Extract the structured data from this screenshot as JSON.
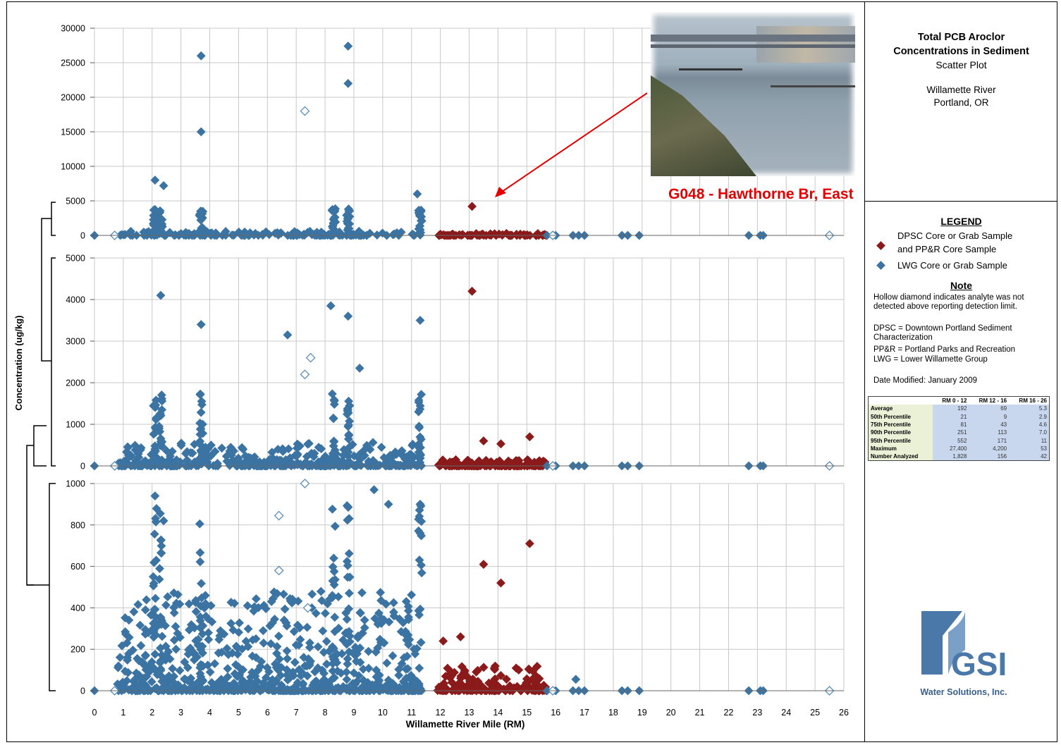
{
  "chart_data": [
    {
      "type": "scatter",
      "panel": "top",
      "ylim": [
        0,
        30000
      ],
      "yticks": [
        "30000",
        "25000",
        "20000",
        "15000",
        "10000",
        "5000",
        "0"
      ],
      "highlight_points": [
        {
          "x": 3.7,
          "y": 26000,
          "series": "LWG"
        },
        {
          "x": 3.7,
          "y": 15000,
          "series": "LWG"
        },
        {
          "x": 8.8,
          "y": 27400,
          "series": "LWG"
        },
        {
          "x": 8.8,
          "y": 22000,
          "series": "LWG"
        },
        {
          "x": 7.3,
          "y": 18000,
          "series": "LWG",
          "nondetect": true
        },
        {
          "x": 2.1,
          "y": 8000,
          "series": "LWG"
        },
        {
          "x": 2.4,
          "y": 7200,
          "series": "LWG"
        },
        {
          "x": 11.2,
          "y": 6000,
          "series": "LWG"
        },
        {
          "x": 13.1,
          "y": 4200,
          "series": "DPSC"
        }
      ]
    },
    {
      "type": "scatter",
      "panel": "middle",
      "ylim": [
        0,
        5000
      ],
      "yticks": [
        "5000",
        "4000",
        "3000",
        "2000",
        "1000",
        "0"
      ],
      "highlight_points": [
        {
          "x": 13.1,
          "y": 4200,
          "series": "DPSC"
        },
        {
          "x": 2.3,
          "y": 4100,
          "series": "LWG"
        },
        {
          "x": 8.2,
          "y": 3850,
          "series": "LWG"
        },
        {
          "x": 8.8,
          "y": 3600,
          "series": "LWG"
        },
        {
          "x": 11.3,
          "y": 3500,
          "series": "LWG"
        },
        {
          "x": 3.7,
          "y": 3400,
          "series": "LWG"
        },
        {
          "x": 6.7,
          "y": 3150,
          "series": "LWG"
        },
        {
          "x": 7.5,
          "y": 2600,
          "series": "LWG",
          "nondetect": true
        },
        {
          "x": 7.3,
          "y": 2200,
          "series": "LWG",
          "nondetect": true
        },
        {
          "x": 9.2,
          "y": 2350,
          "series": "LWG"
        },
        {
          "x": 13.5,
          "y": 600,
          "series": "DPSC"
        },
        {
          "x": 14.1,
          "y": 530,
          "series": "DPSC"
        },
        {
          "x": 15.1,
          "y": 700,
          "series": "DPSC"
        }
      ]
    },
    {
      "type": "scatter",
      "panel": "bottom",
      "ylim": [
        0,
        1000
      ],
      "yticks": [
        "1000",
        "800",
        "600",
        "400",
        "200",
        "0"
      ],
      "highlight_points": [
        {
          "x": 2.1,
          "y": 940,
          "series": "LWG"
        },
        {
          "x": 2.4,
          "y": 820,
          "series": "LWG"
        },
        {
          "x": 7.3,
          "y": 1000,
          "series": "LWG",
          "nondetect": true
        },
        {
          "x": 6.4,
          "y": 845,
          "series": "LWG",
          "nondetect": true
        },
        {
          "x": 6.4,
          "y": 580,
          "series": "LWG",
          "nondetect": true
        },
        {
          "x": 7.4,
          "y": 400,
          "series": "LWG",
          "nondetect": true
        },
        {
          "x": 9.7,
          "y": 970,
          "series": "LWG"
        },
        {
          "x": 10.2,
          "y": 900,
          "series": "LWG"
        },
        {
          "x": 11.3,
          "y": 900,
          "series": "LWG"
        },
        {
          "x": 11.3,
          "y": 760,
          "series": "LWG"
        },
        {
          "x": 12.1,
          "y": 240,
          "series": "DPSC"
        },
        {
          "x": 12.7,
          "y": 260,
          "series": "DPSC"
        },
        {
          "x": 13.5,
          "y": 610,
          "series": "DPSC"
        },
        {
          "x": 14.1,
          "y": 520,
          "series": "DPSC"
        },
        {
          "x": 15.1,
          "y": 710,
          "series": "DPSC"
        },
        {
          "x": 16.7,
          "y": 55,
          "series": "LWG"
        }
      ]
    }
  ],
  "axes": {
    "ylabel": "Concentration (ug/kg)",
    "xlabel": "Willamette River Mile (RM)",
    "xlim": [
      0,
      26
    ],
    "xticks": [
      "0",
      "1",
      "2",
      "3",
      "4",
      "5",
      "6",
      "7",
      "8",
      "9",
      "10",
      "11",
      "12",
      "13",
      "14",
      "15",
      "16",
      "17",
      "18",
      "19",
      "20",
      "21",
      "22",
      "23",
      "24",
      "25",
      "26"
    ]
  },
  "series": [
    {
      "name": "DPSC Core or Grab Sample and PP&R Core Sample",
      "color": "#8b1a1a",
      "range": [
        11.9,
        15.8
      ]
    },
    {
      "name": "LWG Core or Grab Sample",
      "color": "#3b74a3",
      "range": [
        0,
        11.4
      ]
    }
  ],
  "upstream_points": [
    15.7,
    16.0,
    16.6,
    16.8,
    17.0,
    18.3,
    18.5,
    18.9,
    22.7,
    23.1,
    23.2
  ],
  "upstream_nondetect": [
    0.7,
    15.9,
    25.5
  ],
  "title": {
    "line1": "Total PCB Aroclor",
    "line2": "Concentrations in Sediment",
    "line3": "Scatter Plot",
    "location1": "Willamette River",
    "location2": "Portland, OR"
  },
  "legend": {
    "heading": "LEGEND",
    "item1_line1": "DPSC Core or Grab Sample",
    "item1_line2": "and PP&R Core Sample",
    "item2": "LWG Core or Grab Sample",
    "note_heading": "Note",
    "note_text": "Hollow diamond indicates analyte was not detected above reporting detection limit.",
    "abbr1": "DPSC = Downtown Portland Sediment Characterization",
    "abbr2": "PP&R = Portland Parks and Recreation",
    "abbr3": "LWG = Lower Willamette Group",
    "date": "Date Modified: January 2009"
  },
  "stats_table": {
    "headers": [
      "",
      "RM 0 - 12",
      "RM 12 - 16",
      "RM 16 - 26"
    ],
    "rows": [
      [
        "Average",
        "192",
        "69",
        "5.3"
      ],
      [
        "50th Percentile",
        "21",
        "9",
        "2.9"
      ],
      [
        "75th Percentile",
        "81",
        "43",
        "4.6"
      ],
      [
        "90th Percentile",
        "251",
        "113",
        "7.0"
      ],
      [
        "95th Percentile",
        "552",
        "171",
        "11"
      ],
      [
        "Maximum",
        "27,400",
        "4,200",
        "53"
      ],
      [
        "Number Analyzed",
        "1,828",
        "156",
        "42"
      ]
    ]
  },
  "annotation": "G048 - Hawthorne Br, East",
  "logo": {
    "name": "GSI",
    "tagline": "Water Solutions, Inc."
  },
  "colors": {
    "dpsc": "#8b1a1a",
    "lwg": "#3b74a3",
    "annotation": "#e30000",
    "grid": "#c8c8c8"
  }
}
